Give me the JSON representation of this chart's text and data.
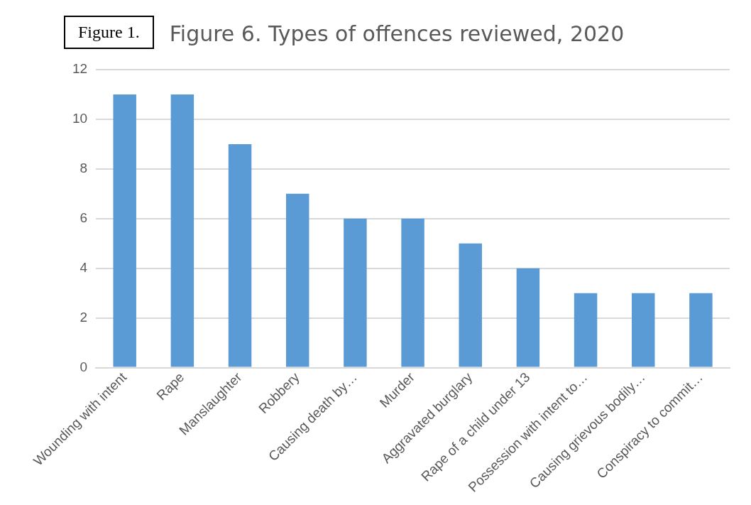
{
  "chart_data": {
    "type": "bar",
    "title": "Figure 6. Types of offences reviewed, 2020",
    "annotations": [
      "Figure 1."
    ],
    "categories": [
      "Wounding with intent",
      "Rape",
      "Manslaughter",
      "Robbery",
      "Causing death by…",
      "Murder",
      "Aggravated burglary",
      "Rape of a child under 13",
      "Possession with intent to…",
      "Causing grievous bodily…",
      "Conspiracy to commit…"
    ],
    "values": [
      11,
      11,
      9,
      7,
      6,
      6,
      5,
      4,
      3,
      3,
      3
    ],
    "color": "#5b9bd5",
    "ylim": [
      0,
      12
    ],
    "yticks": [
      0,
      2,
      4,
      6,
      8,
      10,
      12
    ],
    "grid": "y",
    "legend": false
  }
}
